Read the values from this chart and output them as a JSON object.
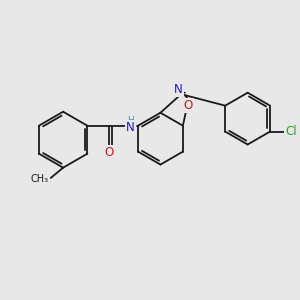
{
  "bg_color": "#e8e8e8",
  "bond_color": "#1a1a1a",
  "bond_width": 1.3,
  "dbo": 0.09,
  "atom_colors": {
    "N": "#1a1acc",
    "O": "#cc1a1a",
    "Cl": "#22aa22"
  },
  "font_size": 8.5,
  "nh_color": "#4a9a9a"
}
